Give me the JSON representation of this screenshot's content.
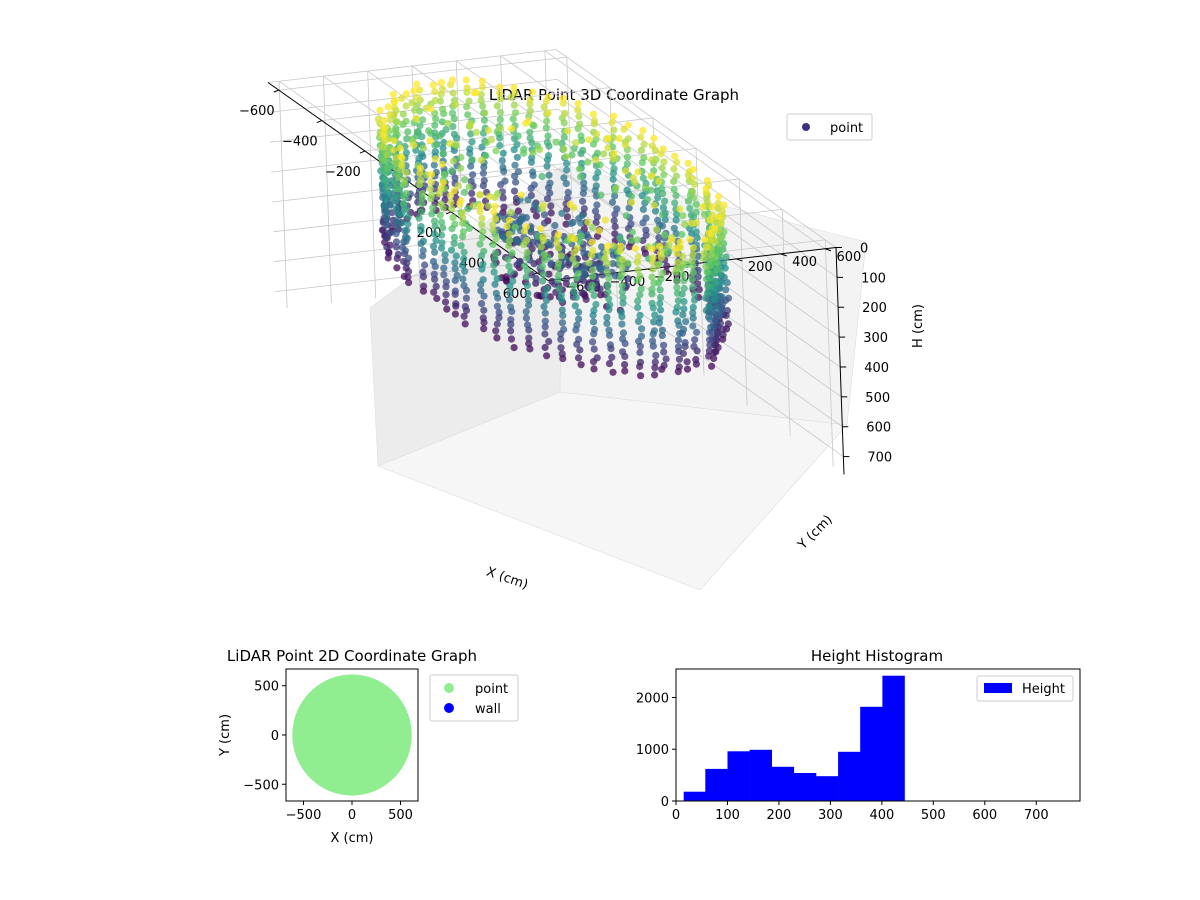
{
  "chart_data": [
    {
      "type": "scatter3d",
      "title": "LiDAR Point 3D Coordinate Graph",
      "xlabel": "X (cm)",
      "ylabel": "Y (cm)",
      "zlabel": "H (cm)",
      "x_ticks": [
        "−600",
        "−400",
        "−200",
        "0",
        "200",
        "400",
        "600"
      ],
      "y_ticks": [
        "−600",
        "−400",
        "−200",
        "0",
        "200",
        "400",
        "600"
      ],
      "z_ticks": [
        "0",
        "100",
        "200",
        "300",
        "400",
        "500",
        "600",
        "700"
      ],
      "xlim": [
        -650,
        650
      ],
      "ylim": [
        -650,
        650
      ],
      "zlim": [
        0,
        760
      ],
      "z_inverted": true,
      "legend": {
        "position": "top-right",
        "entries": [
          {
            "label": "point",
            "color": "#3b2f80"
          }
        ]
      },
      "colormap": "viridis",
      "grid": true,
      "cloud": {
        "description_shape": "ring of vertical point columns around a central cluster",
        "ring_radius": 560,
        "height_range": [
          0,
          430
        ]
      }
    },
    {
      "type": "scatter",
      "title": "LiDAR Point 2D Coordinate Graph",
      "xlabel": "X (cm)",
      "ylabel": "Y (cm)",
      "x_ticks": [
        "−500",
        "0",
        "500"
      ],
      "y_ticks": [
        "−500",
        "0",
        "500"
      ],
      "xlim": [
        -680,
        680
      ],
      "ylim": [
        -670,
        670
      ],
      "legend": {
        "position": "outside-right",
        "entries": [
          {
            "label": "point",
            "color": "#90ee90"
          },
          {
            "label": "wall",
            "color": "#0000ff"
          }
        ]
      },
      "point_region": {
        "center": [
          0,
          0
        ],
        "radius": 580,
        "color": "#90ee90"
      }
    },
    {
      "type": "bar",
      "title": "Height Histogram",
      "x_ticks": [
        "0",
        "100",
        "200",
        "300",
        "400",
        "500",
        "600",
        "700"
      ],
      "y_ticks": [
        "0",
        "1000",
        "2000"
      ],
      "xlim": [
        0,
        785
      ],
      "ylim": [
        0,
        2550
      ],
      "legend": {
        "position": "top-right",
        "entries": [
          {
            "label": "Height",
            "color": "#0000ff"
          }
        ]
      },
      "bar_color": "#0000ff",
      "bins": [
        {
          "x0": 15,
          "x1": 57,
          "value": 180
        },
        {
          "x0": 57,
          "x1": 100,
          "value": 620
        },
        {
          "x0": 100,
          "x1": 143,
          "value": 960
        },
        {
          "x0": 143,
          "x1": 186,
          "value": 990
        },
        {
          "x0": 186,
          "x1": 229,
          "value": 660
        },
        {
          "x0": 229,
          "x1": 272,
          "value": 540
        },
        {
          "x0": 272,
          "x1": 315,
          "value": 480
        },
        {
          "x0": 315,
          "x1": 358,
          "value": 950
        },
        {
          "x0": 358,
          "x1": 401,
          "value": 1820
        },
        {
          "x0": 401,
          "x1": 444,
          "value": 2420
        }
      ]
    }
  ]
}
